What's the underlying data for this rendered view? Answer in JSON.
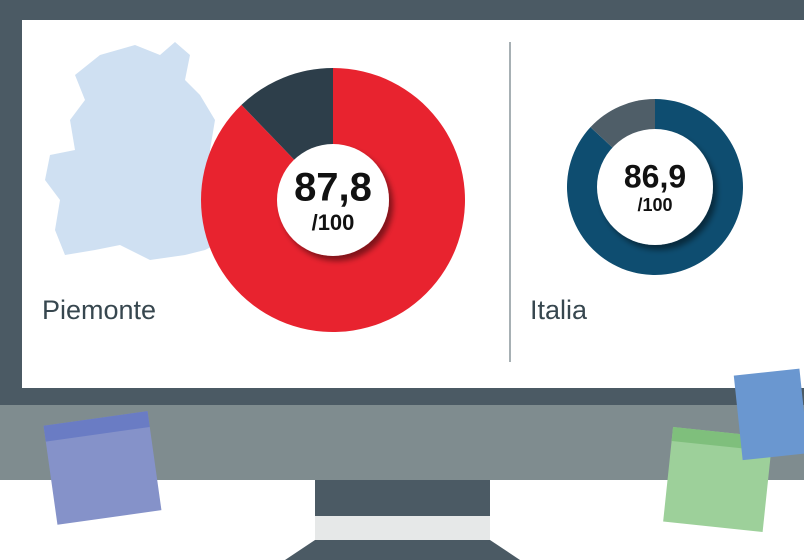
{
  "chart_data": [
    {
      "type": "donut",
      "label": "Piemonte",
      "value": 87.8,
      "value_label": "87,8",
      "total": 100,
      "total_label": "/100",
      "colors": [
        "#e8232f",
        "#2d3e4a"
      ]
    },
    {
      "type": "donut",
      "label": "Italia",
      "value": 86.9,
      "value_label": "86,9",
      "total": 100,
      "total_label": "/100",
      "colors": [
        "#0e4d70",
        "#4f5e68"
      ]
    }
  ]
}
